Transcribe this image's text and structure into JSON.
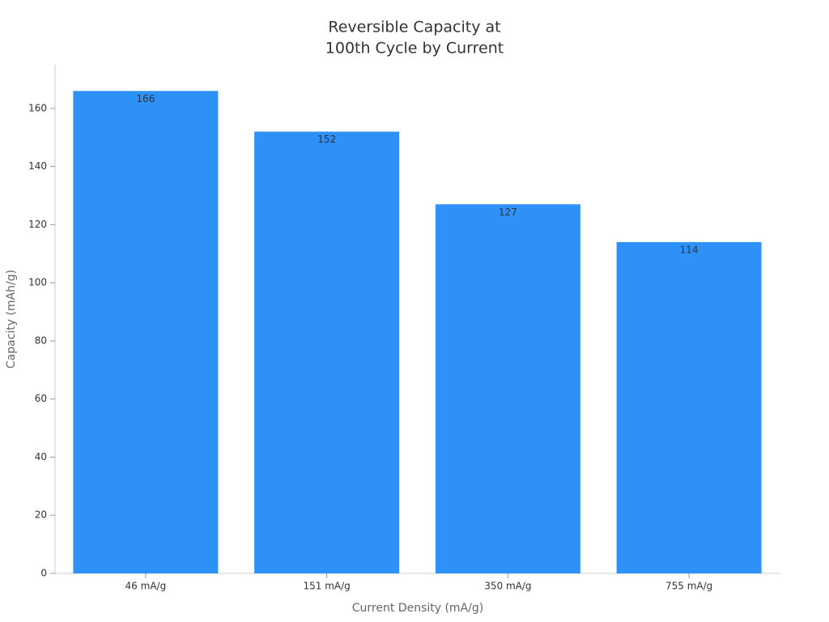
{
  "chart_data": {
    "type": "bar",
    "title": [
      "Reversible Capacity at",
      "100th Cycle by Current"
    ],
    "x_label": "Current Density (mA/g)",
    "y_label": "Capacity (mAh/g)",
    "categories": [
      "46 mA/g",
      "151 mA/g",
      "350 mA/g",
      "755 mA/g"
    ],
    "values": [
      166,
      152,
      127,
      114
    ],
    "color": "#2e91f7",
    "ylim": [
      0,
      175
    ],
    "yticks": [
      0,
      20,
      40,
      60,
      80,
      100,
      120,
      140,
      160
    ],
    "grid": false
  }
}
